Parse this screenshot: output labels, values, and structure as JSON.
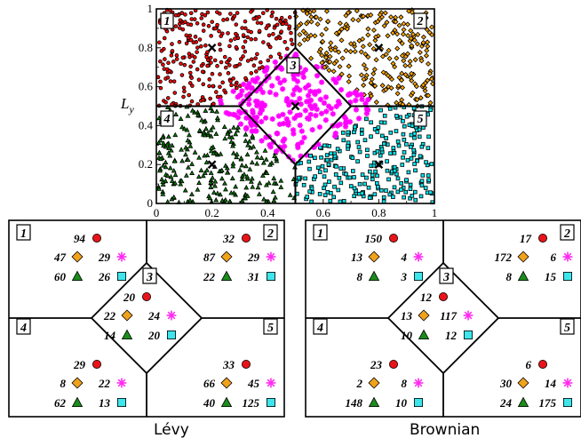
{
  "scatter": {
    "ylabel_main": "L",
    "ylabel_sub": "y",
    "x_ticks": [
      "0",
      "0.2",
      "0.4",
      "0.6",
      "0.8",
      "1"
    ],
    "y_ticks": [
      "0",
      "0.2",
      "0.4",
      "0.6",
      "0.8",
      "1"
    ],
    "xlim": [
      0,
      1
    ],
    "ylim": [
      0,
      1
    ],
    "region_labels": [
      "1",
      "2",
      "3",
      "4",
      "5"
    ],
    "centers": [
      {
        "region": "1",
        "x": 0.2,
        "y": 0.8
      },
      {
        "region": "2",
        "x": 0.8,
        "y": 0.8
      },
      {
        "region": "3",
        "x": 0.5,
        "y": 0.5
      },
      {
        "region": "4",
        "x": 0.2,
        "y": 0.2
      },
      {
        "region": "5",
        "x": 0.8,
        "y": 0.2
      }
    ],
    "region_colors": {
      "1": "#ff0000",
      "2": "#ffa500",
      "3": "#ff00ff",
      "4": "#008000",
      "5": "#00e5ee"
    },
    "region_markers": {
      "1": "circle",
      "2": "diamond",
      "3": "asterisk",
      "4": "triangle",
      "5": "square"
    }
  },
  "marker_colors": {
    "circle": "#e8141a",
    "diamond": "#f0a21c",
    "asterisk": "#ff2bf0",
    "triangle": "#1c8c1c",
    "square": "#3ee6ec"
  },
  "panels": [
    {
      "caption": "Lévy",
      "regions": [
        {
          "label": "1",
          "counts": {
            "circle": "94",
            "diamond": "47",
            "asterisk": "29",
            "triangle": "60",
            "square": "26"
          }
        },
        {
          "label": "2",
          "counts": {
            "circle": "32",
            "diamond": "87",
            "asterisk": "29",
            "triangle": "22",
            "square": "31"
          }
        },
        {
          "label": "3",
          "counts": {
            "circle": "20",
            "diamond": "22",
            "asterisk": "24",
            "triangle": "14",
            "square": "20"
          }
        },
        {
          "label": "4",
          "counts": {
            "circle": "29",
            "diamond": "8",
            "asterisk": "22",
            "triangle": "62",
            "square": "13"
          }
        },
        {
          "label": "5",
          "counts": {
            "circle": "33",
            "diamond": "66",
            "asterisk": "45",
            "triangle": "40",
            "square": "125"
          }
        }
      ]
    },
    {
      "caption": "Brownian",
      "regions": [
        {
          "label": "1",
          "counts": {
            "circle": "150",
            "diamond": "13",
            "asterisk": "4",
            "triangle": "8",
            "square": "3"
          }
        },
        {
          "label": "2",
          "counts": {
            "circle": "17",
            "diamond": "172",
            "asterisk": "6",
            "triangle": "8",
            "square": "15"
          }
        },
        {
          "label": "3",
          "counts": {
            "circle": "12",
            "diamond": "13",
            "asterisk": "117",
            "triangle": "10",
            "square": "12"
          }
        },
        {
          "label": "4",
          "counts": {
            "circle": "23",
            "diamond": "2",
            "asterisk": "8",
            "triangle": "148",
            "square": "10"
          }
        },
        {
          "label": "5",
          "counts": {
            "circle": "6",
            "diamond": "30",
            "asterisk": "14",
            "triangle": "24",
            "square": "175"
          }
        }
      ]
    }
  ]
}
